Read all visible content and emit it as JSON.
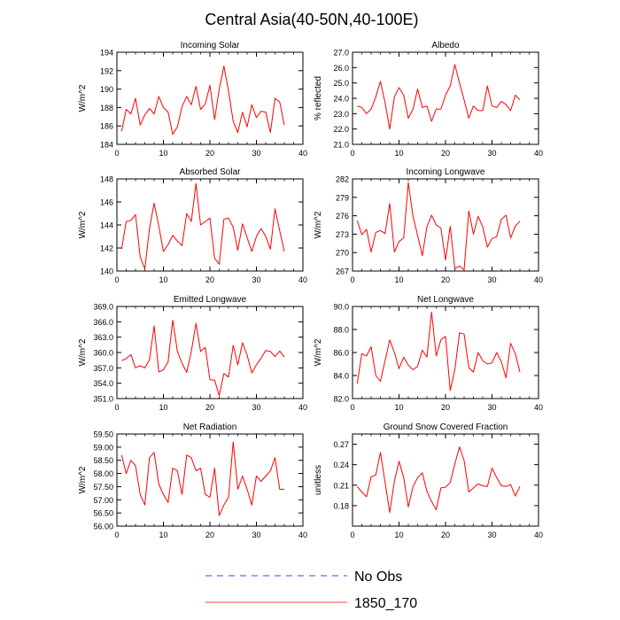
{
  "title": "Central Asia(40-50N,40-100E)",
  "legend": [
    {
      "label": "No Obs",
      "color": "#0000ff",
      "style": "dashed"
    },
    {
      "label": "1850_170",
      "color": "#ff0000",
      "style": "solid"
    }
  ],
  "chart_data": [
    {
      "type": "line",
      "title": "Incoming Solar",
      "ylabel": "W/m^2",
      "xlim": [
        0,
        40
      ],
      "xticks": [
        0,
        10,
        20,
        30,
        40
      ],
      "ylim": [
        184,
        194
      ],
      "yticks": [
        "184",
        "186",
        "188",
        "190",
        "192",
        "194"
      ],
      "series": [
        {
          "name": "1850_170",
          "color": "#ff0000",
          "x": [
            1,
            2,
            3,
            4,
            5,
            6,
            7,
            8,
            9,
            10,
            11,
            12,
            13,
            14,
            15,
            16,
            17,
            18,
            19,
            20,
            21,
            22,
            23,
            24,
            25,
            26,
            27,
            28,
            29,
            30,
            31,
            32,
            33,
            34,
            35,
            36
          ],
          "values": [
            185.4,
            187.8,
            187.3,
            189.0,
            186.1,
            187.2,
            187.9,
            187.3,
            189.2,
            188.0,
            187.5,
            185.1,
            185.9,
            188.1,
            189.2,
            188.3,
            190.3,
            187.8,
            188.4,
            190.4,
            186.7,
            190.0,
            192.5,
            189.8,
            186.5,
            185.3,
            187.5,
            185.9,
            188.3,
            186.9,
            187.6,
            187.5,
            185.3,
            189.0,
            188.6,
            186.1
          ]
        }
      ]
    },
    {
      "type": "line",
      "title": "Albedo",
      "ylabel": "% reflected",
      "xlim": [
        0,
        40
      ],
      "xticks": [
        0,
        10,
        20,
        30,
        40
      ],
      "ylim": [
        21,
        27
      ],
      "yticks": [
        "21.0",
        "22.0",
        "23.0",
        "24.0",
        "25.0",
        "26.0",
        "27.0"
      ],
      "series": [
        {
          "name": "1850_170",
          "color": "#ff0000",
          "x": [
            1,
            2,
            3,
            4,
            5,
            6,
            7,
            8,
            9,
            10,
            11,
            12,
            13,
            14,
            15,
            16,
            17,
            18,
            19,
            20,
            21,
            22,
            23,
            24,
            25,
            26,
            27,
            28,
            29,
            30,
            31,
            32,
            33,
            34,
            35,
            36
          ],
          "values": [
            23.5,
            23.4,
            23.0,
            23.3,
            24.1,
            25.1,
            23.7,
            22.0,
            24.1,
            24.7,
            24.2,
            22.7,
            23.3,
            24.6,
            23.4,
            23.5,
            22.5,
            23.3,
            23.3,
            24.2,
            24.8,
            26.2,
            25.0,
            23.9,
            22.7,
            23.5,
            23.2,
            23.2,
            24.8,
            23.5,
            23.4,
            23.8,
            23.6,
            23.2,
            24.2,
            23.9
          ]
        }
      ]
    },
    {
      "type": "line",
      "title": "Absorbed Solar",
      "ylabel": "W/m^2",
      "xlim": [
        0,
        40
      ],
      "xticks": [
        0,
        10,
        20,
        30,
        40
      ],
      "ylim": [
        140,
        148
      ],
      "yticks": [
        "140",
        "142",
        "144",
        "146",
        "148"
      ],
      "series": [
        {
          "name": "1850_170",
          "color": "#ff0000",
          "x": [
            1,
            2,
            3,
            4,
            5,
            6,
            7,
            8,
            9,
            10,
            11,
            12,
            13,
            14,
            15,
            16,
            17,
            18,
            19,
            20,
            21,
            22,
            23,
            24,
            25,
            26,
            27,
            28,
            29,
            30,
            31,
            32,
            33,
            34,
            35,
            36
          ],
          "values": [
            141.9,
            144.3,
            144.4,
            144.9,
            141.2,
            140.2,
            143.7,
            145.9,
            143.9,
            141.7,
            142.3,
            143.1,
            142.6,
            142.2,
            145.0,
            144.3,
            147.6,
            144.0,
            144.3,
            144.6,
            141.1,
            140.6,
            144.5,
            144.6,
            143.8,
            141.8,
            144.1,
            142.9,
            141.7,
            143.0,
            143.7,
            143.0,
            141.9,
            145.4,
            143.5,
            141.7
          ]
        }
      ]
    },
    {
      "type": "line",
      "title": "Incoming Longwave",
      "ylabel": "W/m^2",
      "xlim": [
        0,
        40
      ],
      "xticks": [
        0,
        10,
        20,
        30,
        40
      ],
      "ylim": [
        267,
        282
      ],
      "yticks": [
        "267",
        "270",
        "273",
        "276",
        "279",
        "282"
      ],
      "series": [
        {
          "name": "1850_170",
          "color": "#ff0000",
          "x": [
            1,
            2,
            3,
            4,
            5,
            6,
            7,
            8,
            9,
            10,
            11,
            12,
            13,
            14,
            15,
            16,
            17,
            18,
            19,
            20,
            21,
            22,
            23,
            24,
            25,
            26,
            27,
            28,
            29,
            30,
            31,
            32,
            33,
            34,
            35,
            36
          ],
          "values": [
            275.2,
            272.9,
            273.8,
            270.1,
            273.3,
            273.6,
            273.1,
            278.0,
            270.1,
            271.8,
            272.4,
            281.4,
            275.9,
            272.8,
            269.5,
            274.2,
            276.1,
            274.5,
            274.0,
            268.8,
            274.3,
            267.4,
            267.8,
            267.2,
            276.8,
            273.0,
            275.9,
            274.2,
            270.9,
            272.3,
            272.6,
            275.4,
            276.1,
            272.4,
            274.3,
            275.1
          ]
        }
      ]
    },
    {
      "type": "line",
      "title": "Emitted Longwave",
      "ylabel": "W/m^2",
      "xlim": [
        0,
        40
      ],
      "xticks": [
        0,
        10,
        20,
        30,
        40
      ],
      "ylim": [
        351,
        369
      ],
      "yticks": [
        "351.0",
        "354.0",
        "357.0",
        "360.0",
        "363.0",
        "366.0",
        "369.0"
      ],
      "series": [
        {
          "name": "1850_170",
          "color": "#ff0000",
          "x": [
            1,
            2,
            3,
            4,
            5,
            6,
            7,
            8,
            9,
            10,
            11,
            12,
            13,
            14,
            15,
            16,
            17,
            18,
            19,
            20,
            21,
            22,
            23,
            24,
            25,
            26,
            27,
            28,
            29,
            30,
            31,
            32,
            33,
            34,
            35,
            36
          ],
          "values": [
            358.4,
            358.8,
            359.6,
            357.0,
            357.4,
            357.0,
            358.6,
            365.2,
            356.2,
            356.6,
            358.2,
            366.3,
            360.2,
            357.9,
            356.1,
            360.2,
            365.7,
            360.2,
            361.0,
            354.7,
            354.6,
            351.6,
            355.9,
            355.2,
            361.4,
            357.6,
            361.9,
            359.5,
            356.0,
            357.6,
            358.9,
            360.4,
            360.2,
            359.2,
            360.3,
            359.1
          ]
        }
      ]
    },
    {
      "type": "line",
      "title": "Net Longwave",
      "ylabel": "W/m^2",
      "xlim": [
        0,
        40
      ],
      "xticks": [
        0,
        10,
        20,
        30,
        40
      ],
      "ylim": [
        82,
        90
      ],
      "yticks": [
        "82.0",
        "84.0",
        "86.0",
        "88.0",
        "90.0"
      ],
      "series": [
        {
          "name": "1850_170",
          "color": "#ff0000",
          "x": [
            1,
            2,
            3,
            4,
            5,
            6,
            7,
            8,
            9,
            10,
            11,
            12,
            13,
            14,
            15,
            16,
            17,
            18,
            19,
            20,
            21,
            22,
            23,
            24,
            25,
            26,
            27,
            28,
            29,
            30,
            31,
            32,
            33,
            34,
            35,
            36
          ],
          "values": [
            83.3,
            85.9,
            85.7,
            86.5,
            84.0,
            83.5,
            85.3,
            87.1,
            86.0,
            84.6,
            85.6,
            84.9,
            84.5,
            84.8,
            86.2,
            85.6,
            89.5,
            85.7,
            87.1,
            87.4,
            82.7,
            84.5,
            87.7,
            87.6,
            84.7,
            84.3,
            86.0,
            85.3,
            85.0,
            85.1,
            86.0,
            85.2,
            83.8,
            86.8,
            85.9,
            84.3
          ]
        }
      ]
    },
    {
      "type": "line",
      "title": "Net Radiation",
      "ylabel": "W/m^2",
      "xlim": [
        0,
        40
      ],
      "xticks": [
        0,
        10,
        20,
        30,
        40
      ],
      "ylim": [
        56,
        59.5
      ],
      "yticks": [
        "56.00",
        "56.50",
        "57.00",
        "57.50",
        "58.00",
        "58.50",
        "59.00",
        "59.50"
      ],
      "series": [
        {
          "name": "1850_170",
          "color": "#ff0000",
          "x": [
            1,
            2,
            3,
            4,
            5,
            6,
            7,
            8,
            9,
            10,
            11,
            12,
            13,
            14,
            15,
            16,
            17,
            18,
            19,
            20,
            21,
            22,
            23,
            24,
            25,
            26,
            27,
            28,
            29,
            30,
            31,
            32,
            33,
            34,
            35,
            36
          ],
          "values": [
            58.7,
            58.0,
            58.5,
            58.3,
            57.2,
            56.8,
            58.6,
            58.8,
            57.6,
            57.2,
            56.9,
            58.2,
            58.1,
            57.2,
            58.7,
            58.6,
            58.1,
            58.2,
            57.2,
            57.1,
            58.2,
            56.4,
            56.8,
            57.1,
            59.2,
            57.4,
            57.9,
            57.4,
            56.8,
            57.9,
            57.7,
            57.9,
            58.1,
            58.6,
            57.4,
            57.4
          ]
        }
      ]
    },
    {
      "type": "line",
      "title": "Ground Snow Covered Fraction",
      "ylabel": "unitless",
      "xlim": [
        0,
        40
      ],
      "xticks": [
        0,
        10,
        20,
        30,
        40
      ],
      "ylim": [
        0.15,
        0.285
      ],
      "yticks": [
        "0.18",
        "0.21",
        "0.24",
        "0.27"
      ],
      "series": [
        {
          "name": "1850_170",
          "color": "#ff0000",
          "x": [
            1,
            2,
            3,
            4,
            5,
            6,
            7,
            8,
            9,
            10,
            11,
            12,
            13,
            14,
            15,
            16,
            17,
            18,
            19,
            20,
            21,
            22,
            23,
            24,
            25,
            26,
            27,
            28,
            29,
            30,
            31,
            32,
            33,
            34,
            35,
            36
          ],
          "values": [
            0.208,
            0.2,
            0.193,
            0.222,
            0.225,
            0.258,
            0.214,
            0.17,
            0.216,
            0.245,
            0.221,
            0.178,
            0.208,
            0.221,
            0.228,
            0.201,
            0.186,
            0.174,
            0.206,
            0.207,
            0.214,
            0.241,
            0.266,
            0.246,
            0.2,
            0.206,
            0.212,
            0.209,
            0.208,
            0.235,
            0.221,
            0.209,
            0.208,
            0.211,
            0.194,
            0.208
          ]
        }
      ]
    }
  ]
}
